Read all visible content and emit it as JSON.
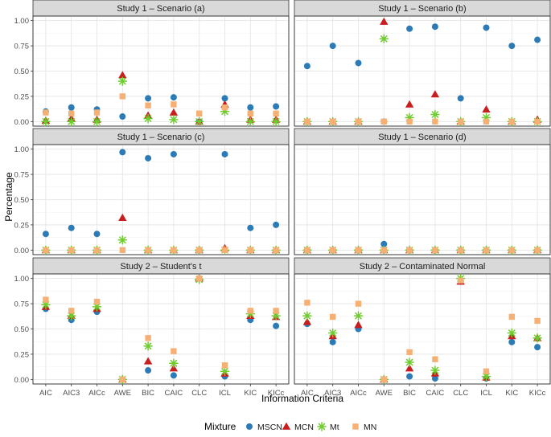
{
  "chart_data": {
    "type": "scatter",
    "xlabel": "Information Criteria",
    "ylabel": "Percentage",
    "categories": [
      "AIC",
      "AIC3",
      "AICc",
      "AWE",
      "BIC",
      "CAIC",
      "CLC",
      "ICL",
      "KIC",
      "KICc"
    ],
    "ylim": [
      0,
      1
    ],
    "yticks": [
      "0.00",
      "0.25",
      "0.50",
      "0.75",
      "1.00"
    ],
    "legend": {
      "title": "Mixture",
      "position": "bottom",
      "entries": [
        {
          "name": "MSCN",
          "shape": "circle",
          "color": "#2c7bb6"
        },
        {
          "name": "MCN",
          "shape": "triangle",
          "color": "#c81e1e"
        },
        {
          "name": "Mt",
          "shape": "asterisk",
          "color": "#6ecc2e"
        },
        {
          "name": "MN",
          "shape": "square",
          "color": "#f6b073"
        }
      ]
    },
    "panels": [
      {
        "title": "Study 1 – Scenario (a)",
        "series": {
          "MN": [
            0.09,
            0.08,
            0.09,
            0.25,
            0.16,
            0.17,
            0.08,
            0.14,
            0.08,
            0.08
          ],
          "Mt": [
            0.0,
            0.0,
            0.0,
            0.4,
            0.03,
            0.02,
            0.0,
            0.1,
            0.0,
            0.0
          ],
          "MCN": [
            0.01,
            0.03,
            0.02,
            0.46,
            0.06,
            0.09,
            0.0,
            0.17,
            0.02,
            0.02
          ],
          "MSCN": [
            0.1,
            0.14,
            0.12,
            0.05,
            0.23,
            0.24,
            0.0,
            0.23,
            0.14,
            0.15
          ]
        }
      },
      {
        "title": "Study 1 – Scenario (b)",
        "series": {
          "MN": [
            0.0,
            0.0,
            0.0,
            0.0,
            0.0,
            0.0,
            0.0,
            0.0,
            0.0,
            0.0
          ],
          "Mt": [
            0.0,
            0.0,
            0.0,
            0.82,
            0.04,
            0.07,
            0.0,
            0.04,
            0.0,
            0.0
          ],
          "MCN": [
            0.0,
            0.0,
            0.0,
            0.99,
            0.17,
            0.27,
            0.0,
            0.12,
            0.0,
            0.02
          ],
          "MSCN": [
            0.55,
            0.75,
            0.58,
            0.0,
            0.92,
            0.94,
            0.23,
            0.93,
            0.75,
            0.81
          ]
        }
      },
      {
        "title": "Study 1 – Scenario (c)",
        "series": {
          "MN": [
            0.0,
            0.0,
            0.0,
            0.0,
            0.0,
            0.0,
            0.0,
            0.0,
            0.0,
            0.0
          ],
          "Mt": [
            0.0,
            0.0,
            0.0,
            0.1,
            0.0,
            0.0,
            0.0,
            0.0,
            0.0,
            0.0
          ],
          "MCN": [
            0.0,
            0.0,
            0.0,
            0.32,
            0.0,
            0.0,
            0.0,
            0.02,
            0.0,
            0.0
          ],
          "MSCN": [
            0.16,
            0.22,
            0.16,
            0.97,
            0.91,
            0.95,
            0.0,
            0.95,
            0.22,
            0.25
          ]
        }
      },
      {
        "title": "Study 1 – Scenario (d)",
        "series": {
          "MN": [
            0.0,
            0.0,
            0.0,
            0.0,
            0.0,
            0.0,
            0.0,
            0.0,
            0.0,
            0.0
          ],
          "Mt": [
            0.0,
            0.0,
            0.0,
            0.0,
            0.0,
            0.0,
            0.0,
            0.0,
            0.0,
            0.0
          ],
          "MCN": [
            0.0,
            0.0,
            0.0,
            0.0,
            0.0,
            0.0,
            0.0,
            0.0,
            0.0,
            0.0
          ],
          "MSCN": [
            0.0,
            0.0,
            0.0,
            0.06,
            0.0,
            0.0,
            0.0,
            0.0,
            0.0,
            0.0
          ]
        }
      },
      {
        "title": "Study 2 – Student's t",
        "series": {
          "MN": [
            0.79,
            0.68,
            0.77,
            0.0,
            0.41,
            0.28,
            1.0,
            0.14,
            0.68,
            0.68
          ],
          "Mt": [
            0.74,
            0.63,
            0.72,
            0.0,
            0.33,
            0.16,
            0.99,
            0.08,
            0.65,
            0.63
          ],
          "MCN": [
            0.72,
            0.63,
            0.7,
            0.0,
            0.18,
            0.11,
            1.0,
            0.06,
            0.63,
            0.62
          ],
          "MSCN": [
            0.7,
            0.59,
            0.67,
            0.0,
            0.09,
            0.04,
            1.0,
            0.03,
            0.59,
            0.53
          ]
        }
      },
      {
        "title": "Study 2 – Contaminated Normal",
        "series": {
          "MN": [
            0.76,
            0.62,
            0.75,
            0.0,
            0.27,
            0.2,
            0.98,
            0.08,
            0.62,
            0.58
          ],
          "Mt": [
            0.63,
            0.46,
            0.63,
            0.0,
            0.17,
            0.09,
            1.0,
            0.03,
            0.46,
            0.41
          ],
          "MCN": [
            0.57,
            0.43,
            0.54,
            0.0,
            0.11,
            0.06,
            0.97,
            0.02,
            0.43,
            0.41
          ],
          "MSCN": [
            0.55,
            0.37,
            0.5,
            0.0,
            0.03,
            0.01,
            0.97,
            0.01,
            0.37,
            0.32
          ]
        }
      }
    ]
  }
}
